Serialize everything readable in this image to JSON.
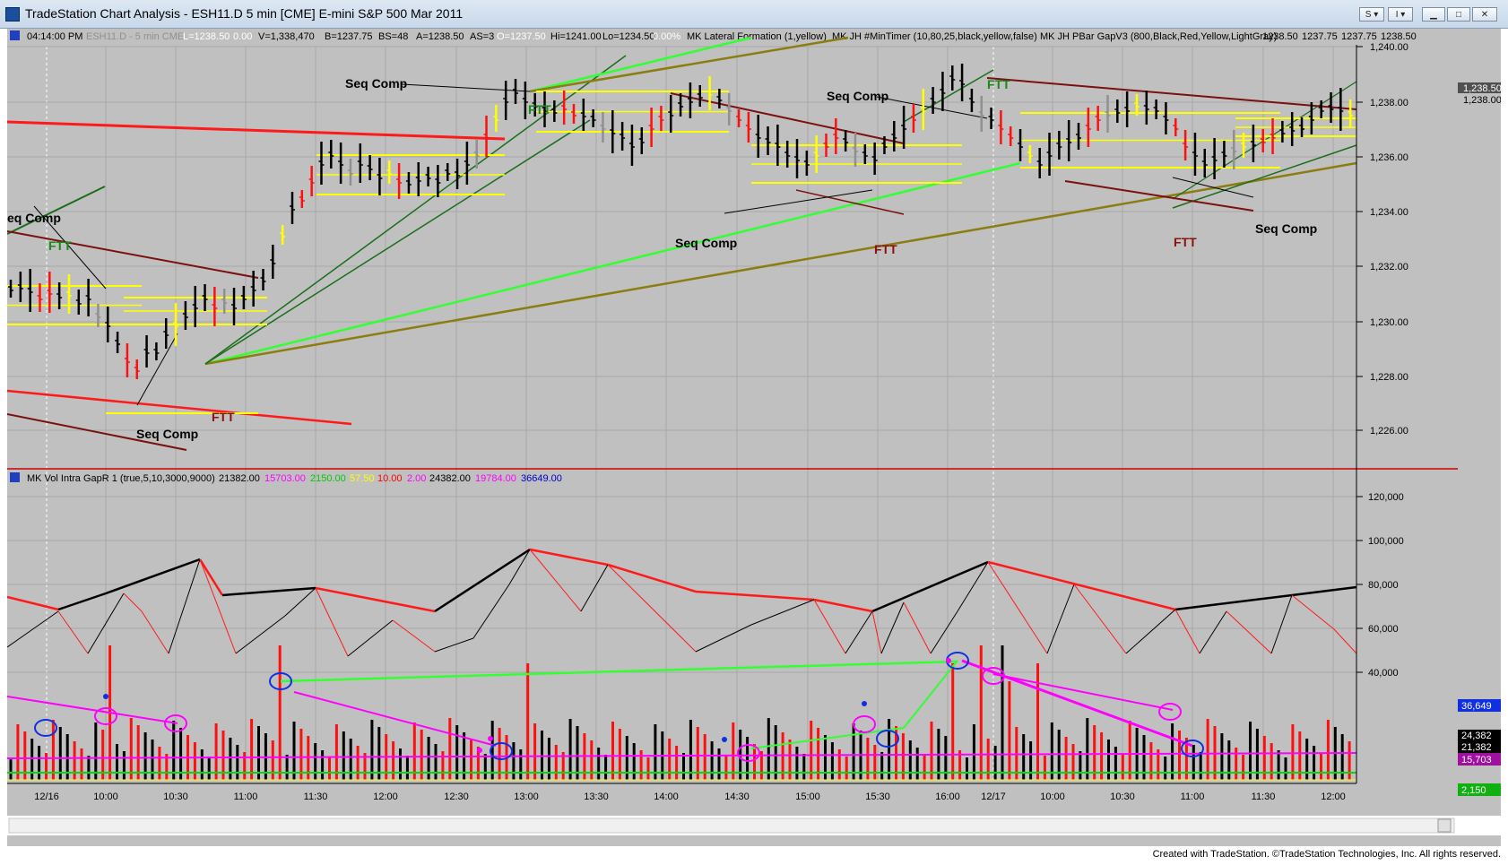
{
  "window": {
    "title": "TradeStation Chart Analysis - ESH11.D 5 min [CME] E-mini S&P 500 Mar 2011",
    "buttons": {
      "s_dropdown": "S ▾",
      "i_dropdown": "I ▾",
      "minimize": "▁",
      "maximize": "□",
      "close": "✕"
    }
  },
  "price_header": {
    "time": "04:14:00 PM",
    "symbol": "ESH11.D - 5 min CME",
    "last": "L=1238.50",
    "change": "0.00",
    "volume": "V=1,338,470",
    "bid": "B=1237.75",
    "bid_size": "BS=48",
    "ask": "A=1238.50",
    "ask_size": "AS=3",
    "open": "O=1237.50",
    "high": "Hi=1241.00",
    "low": "Lo=1234.50",
    "pct": "0.00%",
    "ind1": "MK Lateral Formation (1,yellow)",
    "ind2": "MK JH #MinTimer (10,80,25,black,yellow,false)",
    "ind3": "MK JH PBar GapV3 (800,Black,Red,Yellow,LightGray)",
    "v1": "1238.50",
    "v2": "1237.75",
    "v3": "1237.75",
    "v4": "1238.50"
  },
  "volume_header": {
    "name": "MK Vol Intra GapR 1 (true,5,10,3000,9000)",
    "v1": "21382.00",
    "v2": "15703.00",
    "v3": "2150.00",
    "v4": "57.50",
    "v5": "10.00",
    "v6": "2.00",
    "v7": "24382.00",
    "v8": "19784.00",
    "v9": "36649.00"
  },
  "price_axis": [
    "1,240.00",
    "1,238.00",
    "1,236.00",
    "1,234.00",
    "1,232.00",
    "1,230.00",
    "1,228.00",
    "1,226.00"
  ],
  "price_badges": {
    "last": "1,238.50",
    "second": "1,238.00"
  },
  "volume_axis": [
    "120,000",
    "100,000",
    "80,000",
    "60,000",
    "40,000"
  ],
  "volume_badges": {
    "blue": "36,649",
    "black1": "24,382",
    "black2": "21,382",
    "magenta": "15,703",
    "green": "2,150"
  },
  "time_axis": [
    "12/16",
    "10:00",
    "10:30",
    "11:00",
    "11:30",
    "12:00",
    "12:30",
    "13:00",
    "13:30",
    "14:00",
    "14:30",
    "15:00",
    "15:30",
    "16:00",
    "12/17",
    "10:00",
    "10:30",
    "11:00",
    "11:30",
    "12:00"
  ],
  "annotations": {
    "seq_comp": "Seq Comp",
    "seq_comp_clip": "eq Comp",
    "ftt": "FTT"
  },
  "credit": "Created with TradeStation. ©TradeStation Technologies, Inc. All rights reserved.",
  "colors": {
    "bg": "#c0c0c0",
    "red": "#ff1010",
    "darkred": "#7b1010",
    "green": "#22cc22",
    "lime": "#00ee00",
    "olive": "#8a7a10",
    "yellow": "#ffff00",
    "magenta": "#ff00ff",
    "blue": "#0000ff"
  }
}
